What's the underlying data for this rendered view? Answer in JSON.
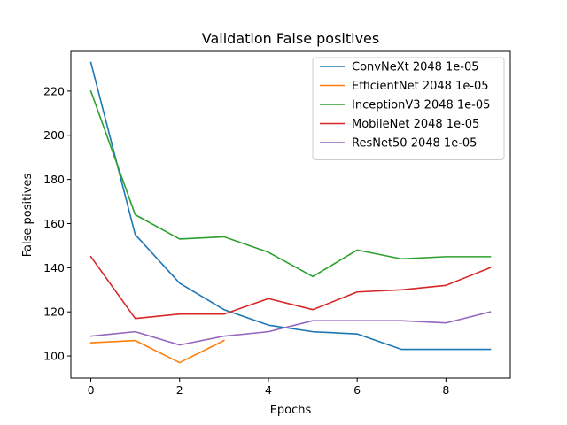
{
  "chart_data": {
    "type": "line",
    "title": "Validation False positives",
    "xlabel": "Epochs",
    "ylabel": "False positives",
    "x": [
      0,
      1,
      2,
      3,
      4,
      5,
      6,
      7,
      8,
      9
    ],
    "xlim": [
      -0.45,
      9.45
    ],
    "ylim": [
      90,
      238
    ],
    "xticks": [
      0,
      2,
      4,
      6,
      8
    ],
    "yticks": [
      100,
      120,
      140,
      160,
      180,
      200,
      220
    ],
    "grid": false,
    "legend_position": "top-right",
    "series": [
      {
        "name": "ConvNeXt 2048 1e-05",
        "color": "#1f77b4",
        "x": [
          0,
          1,
          2,
          3,
          4,
          5,
          6,
          7,
          8,
          9
        ],
        "values": [
          233,
          155,
          133,
          121,
          114,
          111,
          110,
          103,
          103,
          103
        ]
      },
      {
        "name": "EfficientNet 2048 1e-05",
        "color": "#ff7f0e",
        "x": [
          0,
          1,
          2,
          3
        ],
        "values": [
          106,
          107,
          97,
          107
        ]
      },
      {
        "name": "InceptionV3 2048 1e-05",
        "color": "#2ca02c",
        "x": [
          0,
          1,
          2,
          3,
          4,
          5,
          6,
          7,
          8,
          9
        ],
        "values": [
          220,
          164,
          153,
          154,
          147,
          136,
          148,
          144,
          145,
          145
        ]
      },
      {
        "name": "MobileNet 2048 1e-05",
        "color": "#d62728",
        "x": [
          0,
          1,
          2,
          3,
          4,
          5,
          6,
          7,
          8,
          9
        ],
        "values": [
          145,
          117,
          119,
          119,
          126,
          121,
          129,
          130,
          132,
          140
        ]
      },
      {
        "name": "ResNet50 2048 1e-05",
        "color": "#9467bd",
        "x": [
          0,
          1,
          2,
          3,
          4,
          5,
          6,
          7,
          8,
          9
        ],
        "values": [
          109,
          111,
          105,
          109,
          111,
          116,
          116,
          116,
          115,
          120
        ]
      }
    ]
  }
}
